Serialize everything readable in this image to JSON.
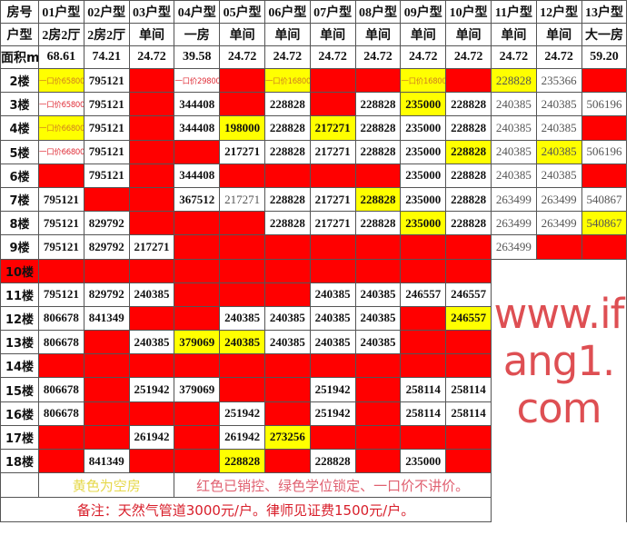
{
  "colors": {
    "sold": "#ff0000",
    "vacant": "#ffff00"
  },
  "header": {
    "row_labels": [
      "房号",
      "户型",
      "面积m²"
    ],
    "units": [
      "01户型",
      "02户型",
      "03户型",
      "04户型",
      "05户型",
      "06户型",
      "07户型",
      "08户型",
      "09户型",
      "10户型",
      "11户型",
      "12户型",
      "13户型"
    ],
    "types": [
      "2房2厅",
      "2房2厅",
      "单间",
      "一房",
      "单间",
      "单间",
      "单间",
      "单间",
      "单间",
      "单间",
      "单间",
      "单间",
      "大一房"
    ],
    "areas": [
      "68.61",
      "74.21",
      "24.72",
      "39.58",
      "24.72",
      "24.72",
      "24.72",
      "24.72",
      "24.72",
      "24.72",
      "24.72",
      "24.72",
      "59.20"
    ]
  },
  "floors": [
    {
      "label": "2楼",
      "cells": [
        [
          "一口价658000",
          "yellow",
          "price"
        ],
        [
          "795121",
          "white"
        ],
        [
          "",
          "red"
        ],
        [
          "一口价298000",
          "white",
          "price"
        ],
        [
          "",
          "red"
        ],
        [
          "一口价168000",
          "yellow",
          "price"
        ],
        [
          "",
          "red"
        ],
        [
          "",
          "red"
        ],
        [
          "一口价168000",
          "yellow",
          "price"
        ],
        [
          "",
          "red"
        ],
        [
          "228828",
          "yellow",
          "muted"
        ],
        [
          "235366",
          "white",
          "muted"
        ],
        [
          "",
          "red"
        ]
      ]
    },
    {
      "label": "3楼",
      "cells": [
        [
          "一口价658000",
          "white",
          "price"
        ],
        [
          "795121",
          "white"
        ],
        [
          "",
          "red"
        ],
        [
          "344408",
          "white"
        ],
        [
          "",
          "red"
        ],
        [
          "228828",
          "white"
        ],
        [
          "",
          "red"
        ],
        [
          "228828",
          "white"
        ],
        [
          "235000",
          "yellow"
        ],
        [
          "228828",
          "white"
        ],
        [
          "240385",
          "white",
          "muted"
        ],
        [
          "240385",
          "white",
          "muted"
        ],
        [
          "506196",
          "white",
          "muted"
        ]
      ]
    },
    {
      "label": "4楼",
      "cells": [
        [
          "一口价668000",
          "yellow",
          "price"
        ],
        [
          "795121",
          "white"
        ],
        [
          "",
          "red"
        ],
        [
          "344408",
          "white"
        ],
        [
          "198000",
          "yellow"
        ],
        [
          "228828",
          "white"
        ],
        [
          "217271",
          "yellow"
        ],
        [
          "228828",
          "white"
        ],
        [
          "235000",
          "white"
        ],
        [
          "228828",
          "white"
        ],
        [
          "240385",
          "white",
          "muted"
        ],
        [
          "240385",
          "white",
          "muted"
        ],
        [
          "",
          "red"
        ]
      ]
    },
    {
      "label": "5楼",
      "cells": [
        [
          "一口价668000",
          "white",
          "price"
        ],
        [
          "795121",
          "white"
        ],
        [
          "",
          "red"
        ],
        [
          "",
          "red"
        ],
        [
          "217271",
          "white"
        ],
        [
          "228828",
          "white"
        ],
        [
          "217271",
          "white"
        ],
        [
          "228828",
          "white"
        ],
        [
          "235000",
          "white"
        ],
        [
          "228828",
          "yellow"
        ],
        [
          "240385",
          "white",
          "muted"
        ],
        [
          "240385",
          "yellow",
          "muted"
        ],
        [
          "506196",
          "white",
          "muted"
        ]
      ]
    },
    {
      "label": "6楼",
      "cells": [
        [
          "",
          "red"
        ],
        [
          "795121",
          "white"
        ],
        [
          "",
          "red"
        ],
        [
          "344408",
          "white"
        ],
        [
          "",
          "red"
        ],
        [
          "",
          "red"
        ],
        [
          "",
          "red"
        ],
        [
          "",
          "red"
        ],
        [
          "235000",
          "white"
        ],
        [
          "228828",
          "white"
        ],
        [
          "240385",
          "white",
          "muted"
        ],
        [
          "240385",
          "white",
          "muted"
        ],
        [
          "",
          "red"
        ]
      ]
    },
    {
      "label": "7楼",
      "cells": [
        [
          "795121",
          "white"
        ],
        [
          "",
          "red"
        ],
        [
          "",
          "red"
        ],
        [
          "367512",
          "white"
        ],
        [
          "217271",
          "white",
          "muted"
        ],
        [
          "228828",
          "white"
        ],
        [
          "217271",
          "white"
        ],
        [
          "228828",
          "yellow"
        ],
        [
          "235000",
          "white"
        ],
        [
          "228828",
          "white"
        ],
        [
          "263499",
          "white",
          "muted"
        ],
        [
          "263499",
          "white",
          "muted"
        ],
        [
          "540867",
          "white",
          "muted"
        ]
      ]
    },
    {
      "label": "8楼",
      "cells": [
        [
          "795121",
          "white"
        ],
        [
          "829792",
          "white"
        ],
        [
          "",
          "red"
        ],
        [
          "",
          "red"
        ],
        [
          "",
          "red"
        ],
        [
          "228828",
          "white"
        ],
        [
          "217271",
          "white"
        ],
        [
          "228828",
          "white"
        ],
        [
          "235000",
          "yellow"
        ],
        [
          "228828",
          "white"
        ],
        [
          "263499",
          "white",
          "muted"
        ],
        [
          "263499",
          "white",
          "muted"
        ],
        [
          "540867",
          "yellow",
          "muted"
        ]
      ]
    },
    {
      "label": "9楼",
      "cells": [
        [
          "795121",
          "white"
        ],
        [
          "829792",
          "white"
        ],
        [
          "217271",
          "white"
        ],
        [
          "",
          "red"
        ],
        [
          "",
          "red"
        ],
        [
          "",
          "red"
        ],
        [
          "",
          "red"
        ],
        [
          "",
          "red"
        ],
        [
          "",
          "red"
        ],
        [
          "",
          "red"
        ],
        [
          "263499",
          "white",
          "muted"
        ],
        [
          "",
          "red"
        ],
        [
          "",
          "red"
        ]
      ]
    },
    {
      "label": "10楼",
      "label_fill": "red",
      "cells": [
        [
          "",
          "red"
        ],
        [
          "",
          "red"
        ],
        [
          "",
          "red"
        ],
        [
          "",
          "red"
        ],
        [
          "",
          "red"
        ],
        [
          "",
          "red"
        ],
        [
          "",
          "red"
        ],
        [
          "",
          "red"
        ],
        [
          "",
          "red"
        ],
        [
          "",
          "red"
        ],
        [
          "",
          "none"
        ],
        [
          "",
          "none"
        ],
        [
          "",
          "none"
        ]
      ]
    },
    {
      "label": "11楼",
      "cells": [
        [
          "795121",
          "white"
        ],
        [
          "829792",
          "white"
        ],
        [
          "240385",
          "white"
        ],
        [
          "",
          "red"
        ],
        [
          "",
          "red"
        ],
        [
          "",
          "red"
        ],
        [
          "240385",
          "white"
        ],
        [
          "240385",
          "white"
        ],
        [
          "246557",
          "white"
        ],
        [
          "246557",
          "white"
        ],
        [
          "",
          "none"
        ],
        [
          "",
          "none"
        ],
        [
          "",
          "none"
        ]
      ]
    },
    {
      "label": "12楼",
      "cells": [
        [
          "806678",
          "white"
        ],
        [
          "841349",
          "white"
        ],
        [
          "",
          "red"
        ],
        [
          "",
          "red"
        ],
        [
          "240385",
          "white"
        ],
        [
          "240385",
          "white"
        ],
        [
          "240385",
          "white"
        ],
        [
          "240385",
          "white"
        ],
        [
          "",
          "red"
        ],
        [
          "246557",
          "yellow"
        ],
        [
          "",
          "none"
        ],
        [
          "",
          "none"
        ],
        [
          "",
          "none"
        ]
      ]
    },
    {
      "label": "13楼",
      "cells": [
        [
          "806678",
          "white"
        ],
        [
          "",
          "red"
        ],
        [
          "240385",
          "white"
        ],
        [
          "379069",
          "yellow"
        ],
        [
          "240385",
          "yellow"
        ],
        [
          "240385",
          "white"
        ],
        [
          "240385",
          "white"
        ],
        [
          "240385",
          "white"
        ],
        [
          "",
          "red"
        ],
        [
          "",
          "red"
        ],
        [
          "",
          "none"
        ],
        [
          "",
          "none"
        ],
        [
          "",
          "none"
        ]
      ]
    },
    {
      "label": "14楼",
      "cells": [
        [
          "",
          "red"
        ],
        [
          "",
          "red"
        ],
        [
          "",
          "red"
        ],
        [
          "",
          "red"
        ],
        [
          "",
          "red"
        ],
        [
          "",
          "red"
        ],
        [
          "",
          "red"
        ],
        [
          "",
          "red"
        ],
        [
          "",
          "red"
        ],
        [
          "",
          "red"
        ],
        [
          "",
          "none"
        ],
        [
          "",
          "none"
        ],
        [
          "",
          "none"
        ]
      ]
    },
    {
      "label": "15楼",
      "cells": [
        [
          "806678",
          "white"
        ],
        [
          "",
          "red"
        ],
        [
          "251942",
          "white"
        ],
        [
          "379069",
          "white"
        ],
        [
          "",
          "red"
        ],
        [
          "",
          "red"
        ],
        [
          "251942",
          "white"
        ],
        [
          "",
          "red"
        ],
        [
          "258114",
          "white"
        ],
        [
          "258114",
          "white"
        ],
        [
          "",
          "none"
        ],
        [
          "",
          "none"
        ],
        [
          "",
          "none"
        ]
      ]
    },
    {
      "label": "16楼",
      "cells": [
        [
          "806678",
          "white"
        ],
        [
          "",
          "red"
        ],
        [
          "",
          "red"
        ],
        [
          "",
          "red"
        ],
        [
          "251942",
          "white"
        ],
        [
          "",
          "red"
        ],
        [
          "251942",
          "white"
        ],
        [
          "",
          "red"
        ],
        [
          "258114",
          "white"
        ],
        [
          "258114",
          "white"
        ],
        [
          "",
          "none"
        ],
        [
          "",
          "none"
        ],
        [
          "",
          "none"
        ]
      ]
    },
    {
      "label": "17楼",
      "cells": [
        [
          "",
          "red"
        ],
        [
          "",
          "red"
        ],
        [
          "261942",
          "white"
        ],
        [
          "",
          "red"
        ],
        [
          "261942",
          "white"
        ],
        [
          "273256",
          "yellow"
        ],
        [
          "",
          "red"
        ],
        [
          "",
          "red"
        ],
        [
          "",
          "red"
        ],
        [
          "",
          "red"
        ],
        [
          "",
          "none"
        ],
        [
          "",
          "none"
        ],
        [
          "",
          "none"
        ]
      ]
    },
    {
      "label": "18楼",
      "cells": [
        [
          "",
          "red"
        ],
        [
          "841349",
          "white"
        ],
        [
          "",
          "red"
        ],
        [
          "",
          "red"
        ],
        [
          "228828",
          "yellow"
        ],
        [
          "",
          "red"
        ],
        [
          "228828",
          "white"
        ],
        [
          "",
          "red"
        ],
        [
          "235000",
          "white"
        ],
        [
          "",
          "red"
        ],
        [
          "",
          "none"
        ],
        [
          "",
          "none"
        ],
        [
          "",
          "none"
        ]
      ]
    }
  ],
  "legend": {
    "vacant": "黄色为空房",
    "sold": "红色已销控、绿色学位锁定、一口价不讲价。"
  },
  "note": "备注：天然气管道3000元/户。律师见证费1500元/户。",
  "watermark": "www.ifang1.com"
}
